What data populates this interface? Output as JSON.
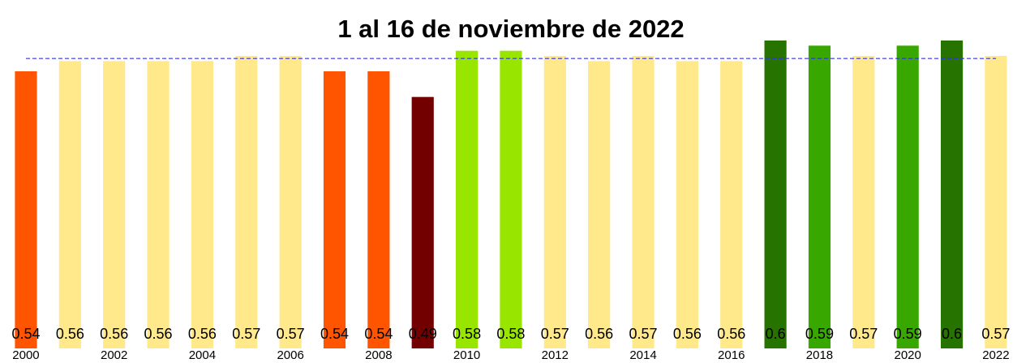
{
  "chart_data": {
    "type": "bar",
    "title": "1 al 16 de noviembre de 2022",
    "categories": [
      "2000",
      null,
      "2002",
      null,
      "2004",
      null,
      "2006",
      null,
      "2008",
      null,
      "2010",
      null,
      "2012",
      null,
      "2014",
      null,
      "2016",
      null,
      "2018",
      null,
      "2020",
      null,
      "2022"
    ],
    "values": [
      0.54,
      0.56,
      0.56,
      0.56,
      0.56,
      0.57,
      0.57,
      0.54,
      0.54,
      0.49,
      0.58,
      0.58,
      0.57,
      0.56,
      0.57,
      0.56,
      0.56,
      0.6,
      0.59,
      0.57,
      0.59,
      0.6,
      0.57
    ],
    "colors": [
      "#ff5500",
      "#ffe98a",
      "#ffe98a",
      "#ffe98a",
      "#ffe98a",
      "#ffe98a",
      "#ffe98a",
      "#ff5500",
      "#ff5500",
      "#730000",
      "#98e600",
      "#98e600",
      "#ffe98a",
      "#ffe98a",
      "#ffe98a",
      "#ffe98a",
      "#ffe98a",
      "#267300",
      "#38a800",
      "#ffe98a",
      "#38a800",
      "#267300",
      "#ffe98a"
    ],
    "ylim": [
      0,
      0.6
    ],
    "reference_line": {
      "value": 0.565,
      "color": "#3333dd"
    }
  }
}
